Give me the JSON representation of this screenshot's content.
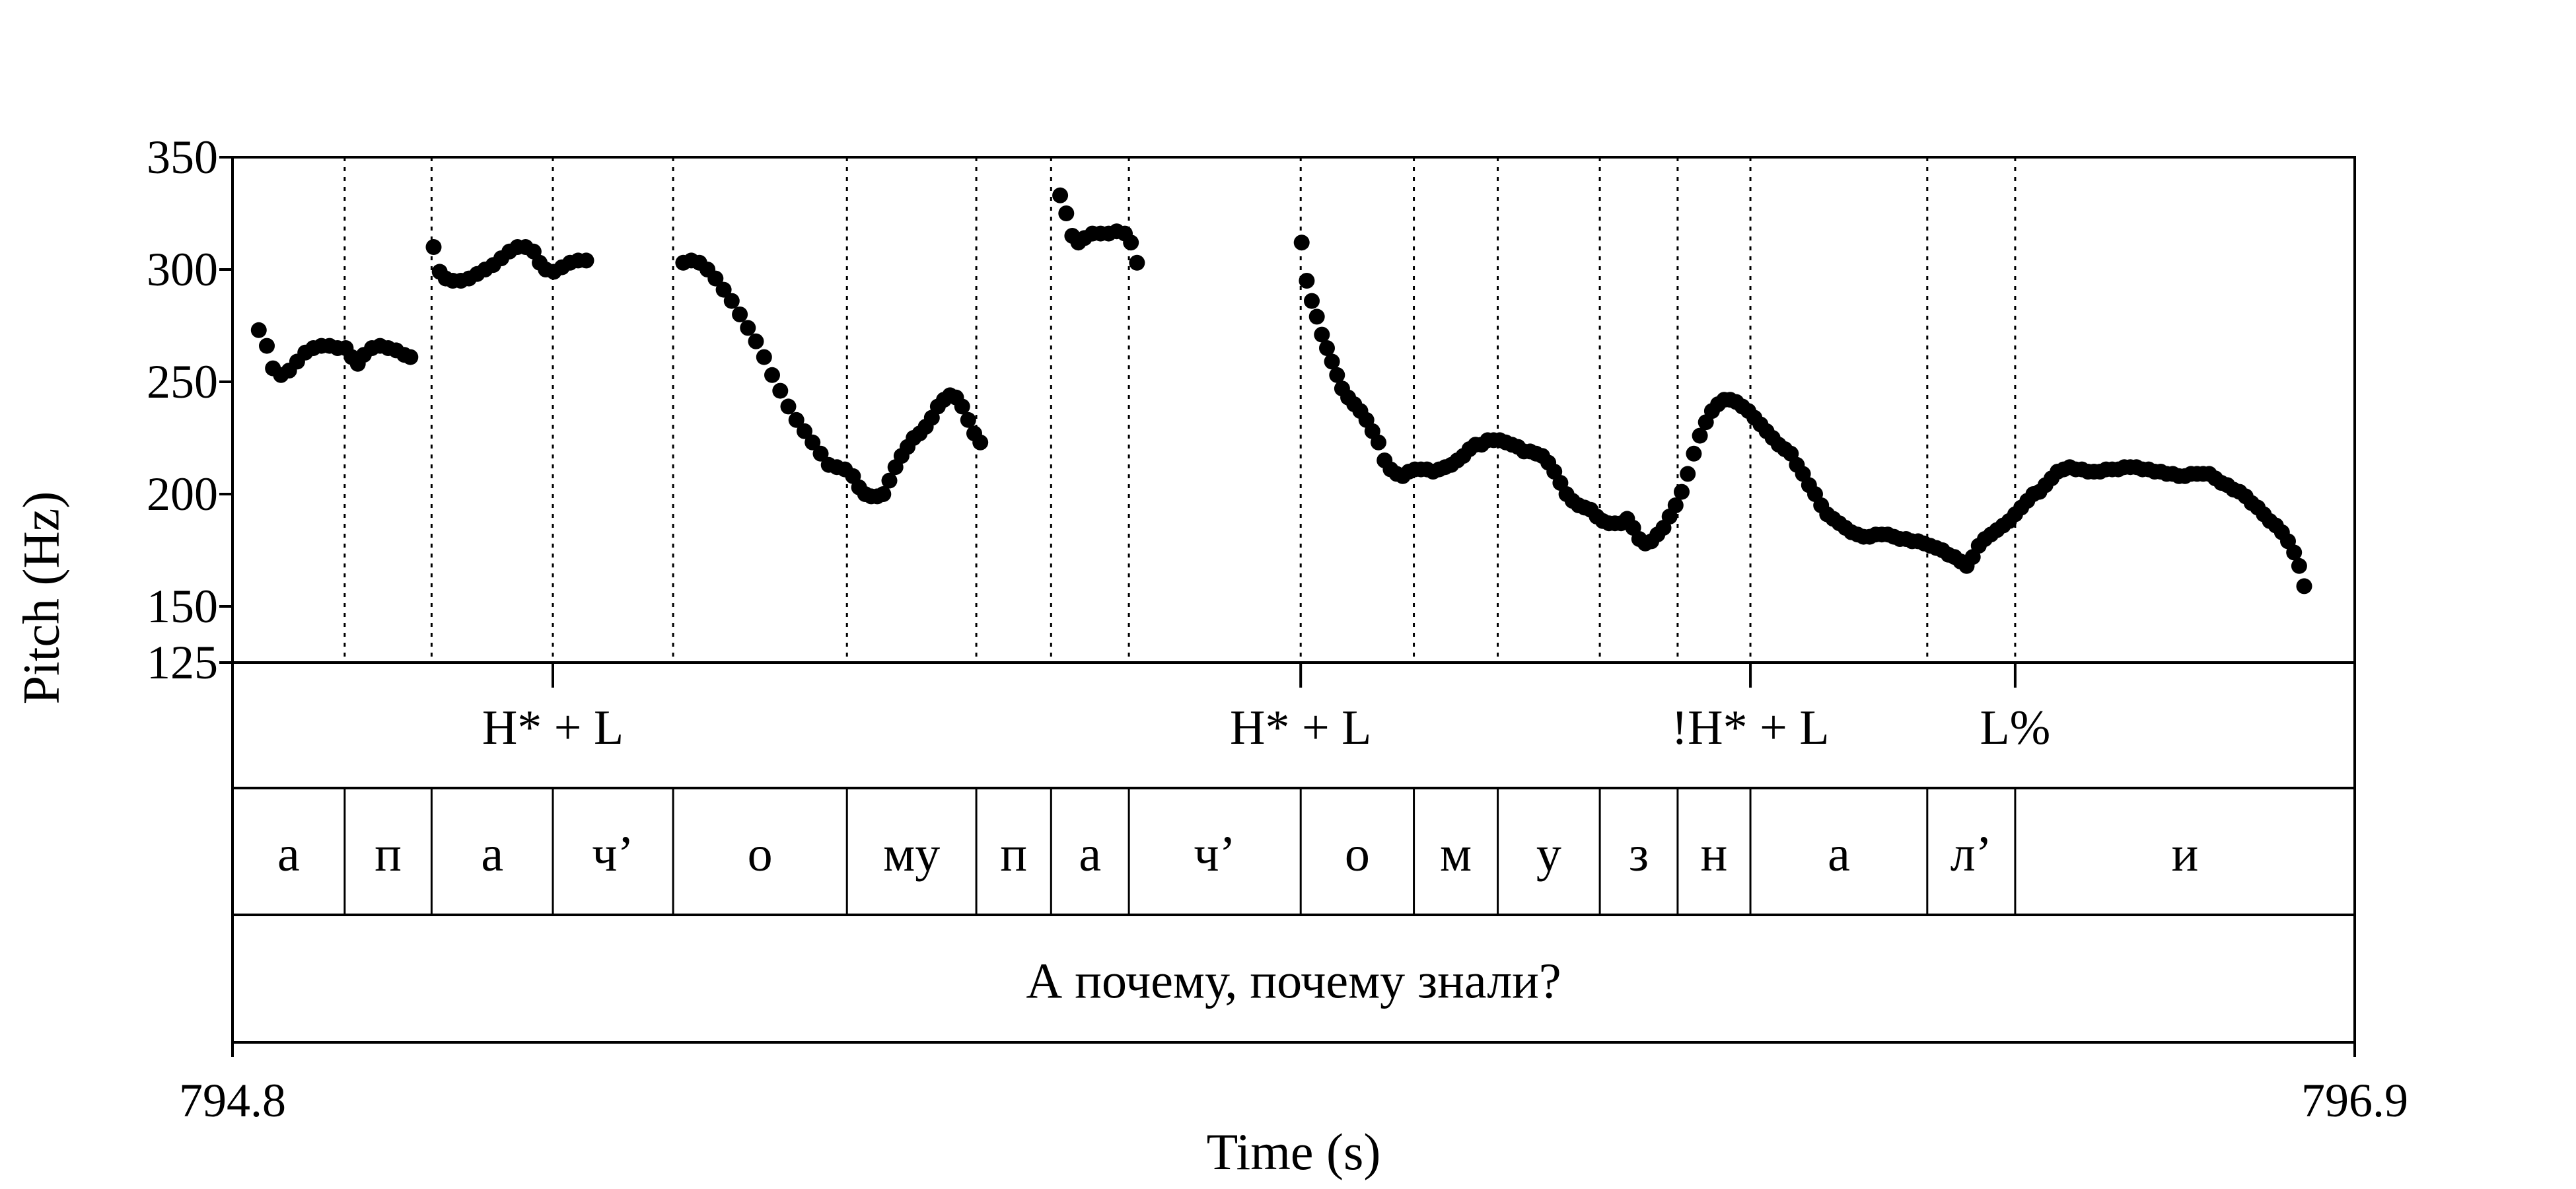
{
  "chart_data": {
    "type": "scatter",
    "title": "",
    "xlabel": "Time (s)",
    "ylabel": "Pitch (Hz)",
    "xlim": [
      794.8,
      796.9
    ],
    "ylim": [
      125,
      350
    ],
    "x_ticks": [
      {
        "value": 794.8,
        "label": "794.8"
      },
      {
        "value": 796.9,
        "label": "796.9"
      }
    ],
    "y_ticks": [
      {
        "value": 350,
        "label": "350"
      },
      {
        "value": 300,
        "label": "300"
      },
      {
        "value": 250,
        "label": "250"
      },
      {
        "value": 200,
        "label": "200"
      },
      {
        "value": 150,
        "label": "150"
      },
      {
        "value": 125,
        "label": "125"
      }
    ],
    "grid": false,
    "segment_boundaries": [
      794.911,
      794.997,
      795.117,
      795.236,
      795.408,
      795.536,
      795.61,
      795.687,
      795.857,
      795.969,
      796.052,
      796.153,
      796.23,
      796.302,
      796.477,
      796.564
    ],
    "tones": [
      {
        "time": 795.117,
        "label": "H* + L"
      },
      {
        "time": 795.857,
        "label": "H* + L"
      },
      {
        "time": 796.302,
        "label": "!H* + L"
      },
      {
        "time": 796.564,
        "label": "L%"
      }
    ],
    "segments": [
      {
        "start": 794.8,
        "end": 794.911,
        "label": "а"
      },
      {
        "start": 794.911,
        "end": 794.997,
        "label": "п"
      },
      {
        "start": 794.997,
        "end": 795.117,
        "label": "а"
      },
      {
        "start": 795.117,
        "end": 795.236,
        "label": "ч’"
      },
      {
        "start": 795.236,
        "end": 795.408,
        "label": "о"
      },
      {
        "start": 795.408,
        "end": 795.536,
        "label": "му"
      },
      {
        "start": 795.536,
        "end": 795.61,
        "label": "п"
      },
      {
        "start": 795.61,
        "end": 795.687,
        "label": "а"
      },
      {
        "start": 795.687,
        "end": 795.857,
        "label": "ч’"
      },
      {
        "start": 795.857,
        "end": 795.969,
        "label": "о"
      },
      {
        "start": 795.969,
        "end": 796.052,
        "label": "м"
      },
      {
        "start": 796.052,
        "end": 796.153,
        "label": "у"
      },
      {
        "start": 796.153,
        "end": 796.23,
        "label": "з"
      },
      {
        "start": 796.23,
        "end": 796.302,
        "label": "н"
      },
      {
        "start": 796.302,
        "end": 796.477,
        "label": "а"
      },
      {
        "start": 796.477,
        "end": 796.564,
        "label": "л’"
      },
      {
        "start": 796.564,
        "end": 796.9,
        "label": "и"
      }
    ],
    "sentence": "А почему, почему знали?",
    "pitch_contours": [
      [
        [
          794.826,
          273
        ],
        [
          794.834,
          266
        ],
        [
          794.84,
          256
        ],
        [
          794.848,
          253
        ],
        [
          794.856,
          255
        ],
        [
          794.864,
          259
        ],
        [
          794.872,
          263
        ],
        [
          794.88,
          265
        ],
        [
          794.888,
          266
        ],
        [
          794.896,
          266
        ],
        [
          794.904,
          265
        ],
        [
          794.912,
          265
        ],
        [
          794.918,
          261
        ],
        [
          794.924,
          258
        ],
        [
          794.93,
          262
        ],
        [
          794.938,
          265
        ],
        [
          794.946,
          266
        ],
        [
          794.954,
          265
        ],
        [
          794.962,
          264
        ],
        [
          794.97,
          262
        ],
        [
          794.976,
          261
        ]
      ],
      [
        [
          794.999,
          310
        ],
        [
          795.005,
          299
        ],
        [
          795.011,
          296
        ],
        [
          795.018,
          295
        ],
        [
          795.026,
          295
        ],
        [
          795.034,
          296
        ],
        [
          795.042,
          298
        ],
        [
          795.05,
          300
        ],
        [
          795.058,
          302
        ],
        [
          795.066,
          305
        ],
        [
          795.074,
          308
        ],
        [
          795.082,
          310
        ],
        [
          795.09,
          310
        ],
        [
          795.098,
          308
        ],
        [
          795.104,
          303
        ],
        [
          795.11,
          300
        ],
        [
          795.118,
          299
        ],
        [
          795.126,
          301
        ],
        [
          795.134,
          303
        ],
        [
          795.142,
          304
        ],
        [
          795.15,
          304
        ]
      ],
      [
        [
          795.246,
          303
        ],
        [
          795.254,
          304
        ],
        [
          795.262,
          303
        ],
        [
          795.27,
          300
        ],
        [
          795.278,
          296
        ],
        [
          795.286,
          291
        ],
        [
          795.294,
          286
        ],
        [
          795.302,
          280
        ],
        [
          795.31,
          274
        ],
        [
          795.318,
          268
        ],
        [
          795.326,
          261
        ],
        [
          795.334,
          253
        ],
        [
          795.342,
          246
        ],
        [
          795.35,
          239
        ],
        [
          795.358,
          233
        ],
        [
          795.366,
          228
        ],
        [
          795.374,
          223
        ],
        [
          795.382,
          218
        ],
        [
          795.39,
          213
        ],
        [
          795.398,
          212
        ],
        [
          795.406,
          211
        ],
        [
          795.414,
          208
        ],
        [
          795.42,
          203
        ],
        [
          795.426,
          200
        ],
        [
          795.432,
          199
        ],
        [
          795.438,
          199
        ],
        [
          795.444,
          200
        ],
        [
          795.45,
          206
        ],
        [
          795.456,
          212
        ],
        [
          795.462,
          217
        ],
        [
          795.468,
          221
        ],
        [
          795.474,
          225
        ],
        [
          795.48,
          227
        ],
        [
          795.486,
          230
        ],
        [
          795.492,
          234
        ],
        [
          795.498,
          239
        ],
        [
          795.504,
          242
        ],
        [
          795.51,
          244
        ],
        [
          795.516,
          243
        ],
        [
          795.522,
          239
        ],
        [
          795.528,
          233
        ],
        [
          795.534,
          227
        ],
        [
          795.54,
          223
        ]
      ],
      [
        [
          795.619,
          333
        ],
        [
          795.625,
          325
        ],
        [
          795.631,
          315
        ],
        [
          795.637,
          312
        ],
        [
          795.643,
          314
        ],
        [
          795.651,
          316
        ],
        [
          795.659,
          316
        ],
        [
          795.667,
          316
        ],
        [
          795.675,
          317
        ],
        [
          795.683,
          316
        ],
        [
          795.689,
          312
        ],
        [
          795.695,
          303
        ]
      ],
      [
        [
          795.858,
          312
        ],
        [
          795.863,
          295
        ],
        [
          795.868,
          286
        ],
        [
          795.873,
          279
        ],
        [
          795.878,
          271
        ],
        [
          795.883,
          265
        ],
        [
          795.888,
          259
        ],
        [
          795.893,
          253
        ],
        [
          795.898,
          247
        ],
        [
          795.904,
          243
        ],
        [
          795.91,
          240
        ],
        [
          795.916,
          237
        ],
        [
          795.922,
          233
        ],
        [
          795.928,
          228
        ],
        [
          795.934,
          223
        ],
        [
          795.94,
          215
        ],
        [
          795.946,
          211
        ],
        [
          795.952,
          209
        ],
        [
          795.958,
          208
        ],
        [
          795.964,
          210
        ],
        [
          795.97,
          211
        ],
        [
          795.976,
          211
        ],
        [
          795.982,
          211
        ],
        [
          795.988,
          210
        ],
        [
          795.994,
          211
        ],
        [
          796.0,
          212
        ],
        [
          796.006,
          213
        ],
        [
          796.012,
          215
        ],
        [
          796.018,
          217
        ],
        [
          796.024,
          220
        ],
        [
          796.03,
          222
        ],
        [
          796.036,
          222
        ],
        [
          796.042,
          224
        ],
        [
          796.048,
          224
        ],
        [
          796.054,
          224
        ],
        [
          796.06,
          223
        ],
        [
          796.066,
          222
        ],
        [
          796.072,
          221
        ],
        [
          796.078,
          219
        ],
        [
          796.084,
          219
        ],
        [
          796.09,
          218
        ],
        [
          796.096,
          217
        ],
        [
          796.102,
          214
        ],
        [
          796.108,
          210
        ],
        [
          796.114,
          205
        ],
        [
          796.12,
          200
        ],
        [
          796.126,
          197
        ],
        [
          796.132,
          195
        ],
        [
          796.138,
          194
        ],
        [
          796.144,
          193
        ],
        [
          796.15,
          190
        ],
        [
          796.156,
          188
        ],
        [
          796.162,
          187
        ],
        [
          796.168,
          187
        ],
        [
          796.174,
          187
        ],
        [
          796.18,
          189
        ],
        [
          796.186,
          185
        ],
        [
          796.192,
          180
        ],
        [
          796.198,
          178
        ],
        [
          796.204,
          179
        ],
        [
          796.21,
          182
        ],
        [
          796.216,
          185
        ],
        [
          796.222,
          190
        ],
        [
          796.228,
          195
        ],
        [
          796.234,
          201
        ],
        [
          796.24,
          209
        ],
        [
          796.246,
          218
        ],
        [
          796.252,
          226
        ],
        [
          796.258,
          232
        ],
        [
          796.264,
          237
        ],
        [
          796.27,
          240
        ],
        [
          796.276,
          242
        ],
        [
          796.282,
          242
        ],
        [
          796.288,
          241
        ],
        [
          796.294,
          239
        ],
        [
          796.3,
          237
        ],
        [
          796.306,
          234
        ],
        [
          796.312,
          231
        ],
        [
          796.318,
          228
        ],
        [
          796.324,
          225
        ],
        [
          796.33,
          222
        ],
        [
          796.336,
          220
        ],
        [
          796.342,
          218
        ],
        [
          796.348,
          213
        ],
        [
          796.354,
          209
        ],
        [
          796.36,
          204
        ],
        [
          796.366,
          200
        ],
        [
          796.372,
          195
        ],
        [
          796.378,
          191
        ],
        [
          796.384,
          189
        ],
        [
          796.39,
          187
        ],
        [
          796.396,
          185
        ],
        [
          796.402,
          183
        ],
        [
          796.408,
          182
        ],
        [
          796.414,
          181
        ],
        [
          796.42,
          181
        ],
        [
          796.426,
          182
        ],
        [
          796.432,
          182
        ],
        [
          796.438,
          182
        ],
        [
          796.444,
          181
        ],
        [
          796.45,
          180
        ],
        [
          796.456,
          180
        ],
        [
          796.462,
          179
        ],
        [
          796.468,
          179
        ],
        [
          796.474,
          178
        ],
        [
          796.48,
          177
        ],
        [
          796.486,
          176
        ],
        [
          796.492,
          175
        ],
        [
          796.498,
          173
        ],
        [
          796.504,
          172
        ],
        [
          796.51,
          170
        ],
        [
          796.516,
          168
        ],
        [
          796.522,
          172
        ],
        [
          796.528,
          177
        ],
        [
          796.534,
          180
        ],
        [
          796.54,
          182
        ],
        [
          796.546,
          184
        ],
        [
          796.552,
          186
        ],
        [
          796.558,
          188
        ],
        [
          796.564,
          191
        ],
        [
          796.57,
          194
        ],
        [
          796.576,
          197
        ],
        [
          796.582,
          200
        ],
        [
          796.588,
          201
        ],
        [
          796.594,
          204
        ],
        [
          796.6,
          207
        ],
        [
          796.606,
          210
        ],
        [
          796.612,
          211
        ],
        [
          796.618,
          212
        ],
        [
          796.624,
          211
        ],
        [
          796.63,
          211
        ],
        [
          796.636,
          210
        ],
        [
          796.642,
          210
        ],
        [
          796.648,
          210
        ],
        [
          796.654,
          211
        ],
        [
          796.66,
          211
        ],
        [
          796.666,
          211
        ],
        [
          796.672,
          212
        ],
        [
          796.678,
          212
        ],
        [
          796.684,
          212
        ],
        [
          796.69,
          211
        ],
        [
          796.696,
          211
        ],
        [
          796.702,
          210
        ],
        [
          796.708,
          210
        ],
        [
          796.714,
          209
        ],
        [
          796.72,
          209
        ],
        [
          796.726,
          208
        ],
        [
          796.732,
          208
        ],
        [
          796.738,
          209
        ],
        [
          796.744,
          209
        ],
        [
          796.75,
          209
        ],
        [
          796.756,
          209
        ],
        [
          796.762,
          207
        ],
        [
          796.768,
          205
        ],
        [
          796.774,
          204
        ],
        [
          796.78,
          202
        ],
        [
          796.786,
          201
        ],
        [
          796.792,
          199
        ],
        [
          796.798,
          196
        ],
        [
          796.804,
          194
        ],
        [
          796.81,
          191
        ],
        [
          796.816,
          188
        ],
        [
          796.822,
          186
        ],
        [
          796.828,
          183
        ],
        [
          796.834,
          179
        ],
        [
          796.84,
          174
        ],
        [
          796.845,
          168
        ],
        [
          796.85,
          159
        ]
      ]
    ]
  }
}
